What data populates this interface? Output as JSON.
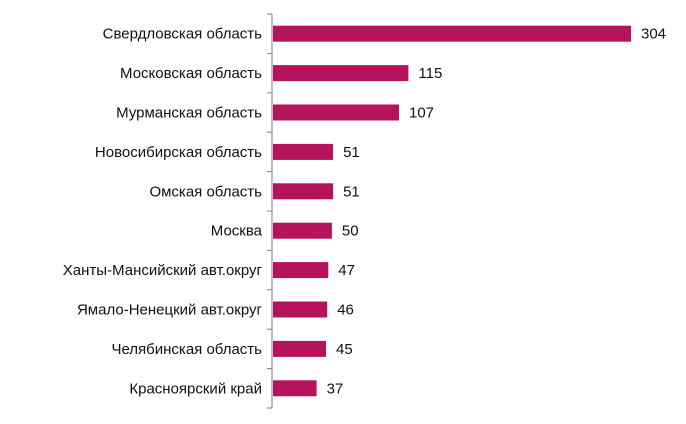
{
  "chart_data": {
    "type": "bar",
    "orientation": "horizontal",
    "categories": [
      "Свердловская область",
      "Московская область",
      "Мурманская область",
      "Новосибирская область",
      "Омская область",
      "Москва",
      "Ханты-Мансийский авт.округ",
      "Ямало-Ненецкий авт.округ",
      "Челябинская область",
      "Красноярский край"
    ],
    "values": [
      304,
      115,
      107,
      51,
      51,
      50,
      47,
      46,
      45,
      37
    ],
    "data_labels": [
      "304",
      "115",
      "107",
      "51",
      "51",
      "50",
      "47",
      "46",
      "45",
      "37"
    ],
    "title": "",
    "xlabel": "",
    "ylabel": "",
    "xlim": [
      0,
      304
    ],
    "grid": false,
    "legend": "none",
    "bar_color": "#B5135C",
    "axis_color": "#808080"
  }
}
